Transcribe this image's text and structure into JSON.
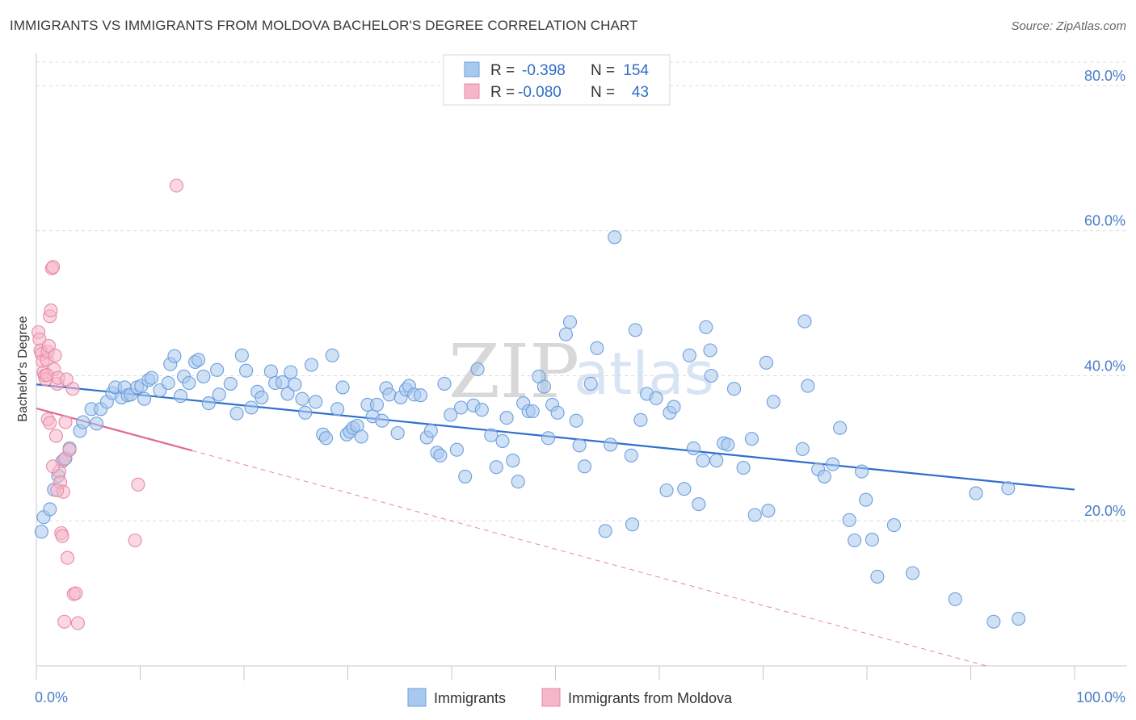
{
  "header": {
    "title": "IMMIGRANTS VS IMMIGRANTS FROM MOLDOVA BACHELOR'S DEGREE CORRELATION CHART",
    "source": "Source: ZipAtlas.com"
  },
  "watermark": {
    "zip": "ZIP",
    "atlas": "atlas"
  },
  "stats_legend": {
    "rows": [
      {
        "r_label": "R =",
        "r_value": "-0.398",
        "n_label": "N =",
        "n_value": "154",
        "color": "#a9c8ef"
      },
      {
        "r_label": "R =",
        "r_value": "-0.080",
        "n_label": "N =",
        "n_value": "43",
        "color": "#f5b7c8"
      }
    ]
  },
  "chart_data": {
    "type": "scatter",
    "title": "IMMIGRANTS VS IMMIGRANTS FROM MOLDOVA BACHELOR'S DEGREE CORRELATION CHART",
    "xlabel": "",
    "ylabel": "Bachelor's Degree",
    "xlim": [
      0,
      100
    ],
    "ylim": [
      0,
      84
    ],
    "x_tick_labels": [
      "0.0%",
      "100.0%"
    ],
    "y_ticks": [
      20,
      40,
      60,
      80
    ],
    "y_tick_labels": [
      "20.0%",
      "40.0%",
      "60.0%",
      "80.0%"
    ],
    "grid": true,
    "legend_position": "bottom",
    "series": [
      {
        "name": "Immigrants",
        "color": "#a9c8ef",
        "stroke": "#6c9fde",
        "trend_color": "#2f6fcf",
        "trend": {
          "x": [
            0,
            100
          ],
          "y": [
            38.8,
            24.3
          ],
          "dash_from": null
        },
        "points": [
          [
            0.5,
            18.5
          ],
          [
            0.7,
            20.5
          ],
          [
            1.3,
            21.6
          ],
          [
            1.7,
            24.3
          ],
          [
            2.1,
            26.2
          ],
          [
            2.5,
            28.2
          ],
          [
            2.8,
            28.6
          ],
          [
            3.2,
            30.0
          ],
          [
            4.2,
            32.4
          ],
          [
            4.5,
            33.6
          ],
          [
            5.8,
            33.4
          ],
          [
            5.3,
            35.4
          ],
          [
            6.2,
            35.4
          ],
          [
            6.8,
            36.4
          ],
          [
            7.3,
            37.6
          ],
          [
            7.6,
            38.4
          ],
          [
            8.2,
            37.0
          ],
          [
            8.5,
            38.4
          ],
          [
            8.8,
            37.3
          ],
          [
            9.1,
            37.4
          ],
          [
            9.7,
            38.4
          ],
          [
            10.1,
            38.6
          ],
          [
            10.4,
            36.8
          ],
          [
            10.8,
            39.4
          ],
          [
            11.1,
            39.7
          ],
          [
            11.9,
            38.0
          ],
          [
            12.7,
            39.0
          ],
          [
            12.9,
            41.6
          ],
          [
            13.3,
            42.7
          ],
          [
            13.9,
            37.2
          ],
          [
            14.2,
            39.9
          ],
          [
            14.7,
            39.0
          ],
          [
            15.3,
            41.9
          ],
          [
            15.6,
            42.2
          ],
          [
            16.1,
            39.9
          ],
          [
            16.6,
            36.2
          ],
          [
            17.4,
            40.8
          ],
          [
            17.6,
            37.4
          ],
          [
            18.7,
            38.9
          ],
          [
            19.3,
            34.8
          ],
          [
            19.8,
            42.8
          ],
          [
            20.2,
            40.7
          ],
          [
            20.7,
            35.6
          ],
          [
            21.3,
            37.8
          ],
          [
            21.7,
            37.0
          ],
          [
            22.6,
            40.6
          ],
          [
            23.0,
            39.0
          ],
          [
            23.7,
            39.1
          ],
          [
            24.2,
            37.5
          ],
          [
            24.5,
            40.5
          ],
          [
            24.9,
            38.8
          ],
          [
            25.6,
            36.8
          ],
          [
            25.9,
            34.9
          ],
          [
            26.5,
            41.5
          ],
          [
            26.9,
            36.4
          ],
          [
            27.6,
            31.9
          ],
          [
            27.9,
            31.4
          ],
          [
            28.5,
            42.8
          ],
          [
            29.0,
            35.4
          ],
          [
            29.5,
            38.4
          ],
          [
            29.9,
            31.9
          ],
          [
            30.2,
            32.3
          ],
          [
            30.5,
            32.8
          ],
          [
            30.9,
            33.1
          ],
          [
            31.3,
            31.6
          ],
          [
            31.9,
            36.0
          ],
          [
            32.4,
            34.4
          ],
          [
            32.8,
            36.0
          ],
          [
            33.3,
            33.8
          ],
          [
            33.7,
            38.3
          ],
          [
            34.0,
            37.4
          ],
          [
            34.8,
            32.1
          ],
          [
            35.1,
            37.0
          ],
          [
            35.6,
            38.1
          ],
          [
            35.9,
            38.6
          ],
          [
            36.4,
            37.4
          ],
          [
            37.0,
            37.3
          ],
          [
            37.6,
            31.5
          ],
          [
            38.0,
            32.4
          ],
          [
            38.6,
            29.4
          ],
          [
            38.9,
            29.0
          ],
          [
            39.3,
            38.9
          ],
          [
            39.9,
            34.6
          ],
          [
            40.5,
            29.8
          ],
          [
            40.9,
            35.6
          ],
          [
            41.3,
            26.1
          ],
          [
            42.1,
            35.9
          ],
          [
            42.5,
            40.9
          ],
          [
            42.9,
            35.3
          ],
          [
            43.8,
            31.8
          ],
          [
            44.3,
            27.4
          ],
          [
            44.9,
            31.0
          ],
          [
            45.3,
            34.2
          ],
          [
            45.9,
            28.3
          ],
          [
            46.4,
            25.4
          ],
          [
            46.9,
            36.2
          ],
          [
            47.4,
            35.1
          ],
          [
            47.8,
            35.1
          ],
          [
            48.4,
            39.9
          ],
          [
            48.9,
            38.5
          ],
          [
            49.3,
            31.4
          ],
          [
            49.7,
            36.0
          ],
          [
            50.2,
            34.9
          ],
          [
            51.0,
            45.7
          ],
          [
            51.4,
            47.4
          ],
          [
            52.0,
            33.8
          ],
          [
            52.3,
            30.4
          ],
          [
            52.8,
            27.5
          ],
          [
            53.4,
            38.9
          ],
          [
            54.0,
            43.8
          ],
          [
            55.7,
            59.1
          ],
          [
            55.3,
            30.5
          ],
          [
            57.3,
            29.0
          ],
          [
            57.7,
            46.3
          ],
          [
            58.2,
            33.9
          ],
          [
            58.8,
            37.5
          ],
          [
            59.7,
            36.9
          ],
          [
            61.0,
            34.9
          ],
          [
            61.4,
            35.7
          ],
          [
            62.4,
            24.4
          ],
          [
            62.9,
            42.8
          ],
          [
            63.3,
            30.0
          ],
          [
            64.2,
            28.3
          ],
          [
            64.5,
            46.7
          ],
          [
            64.9,
            43.5
          ],
          [
            65.5,
            28.3
          ],
          [
            66.2,
            30.7
          ],
          [
            66.6,
            30.5
          ],
          [
            67.2,
            38.2
          ],
          [
            68.1,
            27.3
          ],
          [
            68.9,
            31.3
          ],
          [
            70.3,
            41.8
          ],
          [
            70.5,
            21.4
          ],
          [
            71.0,
            36.4
          ],
          [
            73.8,
            29.9
          ],
          [
            74.0,
            47.5
          ],
          [
            74.3,
            38.6
          ],
          [
            75.3,
            27.1
          ],
          [
            75.9,
            26.1
          ],
          [
            76.7,
            27.8
          ],
          [
            77.4,
            32.8
          ],
          [
            78.3,
            20.1
          ],
          [
            78.8,
            17.3
          ],
          [
            79.5,
            26.8
          ],
          [
            79.9,
            22.9
          ],
          [
            80.5,
            17.4
          ],
          [
            81.0,
            12.3
          ],
          [
            82.6,
            19.4
          ],
          [
            84.4,
            12.8
          ],
          [
            88.5,
            9.2
          ],
          [
            90.5,
            23.8
          ],
          [
            92.2,
            6.1
          ],
          [
            93.6,
            24.5
          ],
          [
            94.6,
            6.5
          ],
          [
            69.2,
            20.8
          ],
          [
            54.8,
            18.6
          ],
          [
            57.4,
            19.5
          ],
          [
            63.8,
            22.3
          ],
          [
            65.0,
            40.0
          ],
          [
            60.7,
            24.2
          ]
        ]
      },
      {
        "name": "Immigrants from Moldova",
        "color": "#f5b7c8",
        "stroke": "#e88aa6",
        "trend_color": "#e06a93",
        "trend": {
          "x": [
            0,
            100
          ],
          "y": [
            35.5,
            -3.3
          ],
          "solid_until": 15
        },
        "points": [
          [
            0.2,
            46.0
          ],
          [
            0.3,
            45.0
          ],
          [
            0.4,
            43.5
          ],
          [
            0.5,
            43.0
          ],
          [
            0.6,
            42.0
          ],
          [
            0.7,
            40.5
          ],
          [
            0.8,
            40.0
          ],
          [
            0.9,
            39.5
          ],
          [
            1.0,
            42.2
          ],
          [
            1.1,
            43.3
          ],
          [
            1.2,
            44.1
          ],
          [
            1.3,
            48.2
          ],
          [
            1.4,
            49.0
          ],
          [
            1.5,
            54.8
          ],
          [
            1.6,
            55.0
          ],
          [
            1.7,
            40.9
          ],
          [
            1.9,
            31.7
          ],
          [
            2.0,
            38.9
          ],
          [
            2.1,
            39.7
          ],
          [
            2.2,
            26.8
          ],
          [
            2.3,
            25.3
          ],
          [
            2.4,
            18.3
          ],
          [
            2.5,
            17.9
          ],
          [
            2.6,
            24.0
          ],
          [
            2.7,
            28.5
          ],
          [
            2.8,
            33.6
          ],
          [
            3.0,
            14.9
          ],
          [
            3.2,
            29.8
          ],
          [
            3.5,
            38.2
          ],
          [
            3.6,
            9.9
          ],
          [
            3.8,
            10.0
          ],
          [
            4.0,
            5.9
          ],
          [
            2.9,
            39.5
          ],
          [
            2.7,
            6.1
          ],
          [
            1.0,
            40.1
          ],
          [
            1.1,
            34.0
          ],
          [
            1.3,
            33.5
          ],
          [
            1.6,
            27.5
          ],
          [
            2.0,
            24.2
          ],
          [
            9.8,
            25.0
          ],
          [
            9.5,
            17.3
          ],
          [
            13.5,
            66.2
          ],
          [
            1.8,
            42.8
          ]
        ]
      }
    ]
  },
  "bottom_legend": {
    "items": [
      {
        "label": "Immigrants",
        "color": "#a9c8ef"
      },
      {
        "label": "Immigrants from Moldova",
        "color": "#f5b7c8"
      }
    ]
  }
}
